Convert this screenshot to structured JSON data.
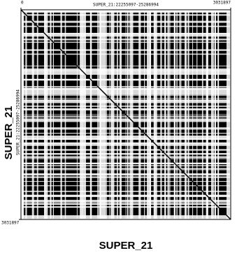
{
  "chart_data": {
    "type": "dotplot",
    "title": "SUPER_21:22255097-25286994",
    "x_label": "SUPER_21",
    "y_label": "SUPER_21",
    "y_title": "SUPER_21:22255097-25286994",
    "xlim": [
      0,
      3031897
    ],
    "ylim": [
      0,
      3031897
    ],
    "xticks": [
      0,
      3031897
    ],
    "yticks": [
      3031897
    ],
    "color": "#000000"
  }
}
